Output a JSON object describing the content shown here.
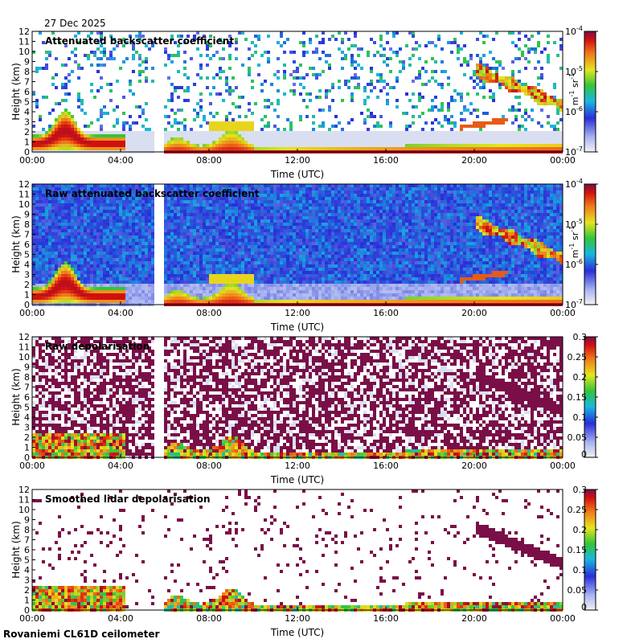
{
  "figure": {
    "date": "27 Dec 2025",
    "footer": "Rovaniemi CL61D ceilometer"
  },
  "chart_data": [
    {
      "type": "heatmap",
      "title": "Attenuated backscatter coefficient",
      "xlabel": "Time (UTC)",
      "ylabel": "Height (km)",
      "x_ticks": [
        "00:00",
        "04:00",
        "08:00",
        "12:00",
        "16:00",
        "20:00",
        "00:00"
      ],
      "y_ticks": [
        "0",
        "1",
        "2",
        "3",
        "4",
        "5",
        "6",
        "7",
        "8",
        "9",
        "10",
        "11",
        "12"
      ],
      "xlim": [
        0,
        24
      ],
      "ylim": [
        0,
        12
      ],
      "colorbar": {
        "scale": "log",
        "range": [
          1e-07,
          0.0001
        ],
        "unit": "m-1 sr-1",
        "tick_labels": [
          {
            "base": "10",
            "exp": "-4"
          },
          {
            "base": "10",
            "exp": "-5"
          },
          {
            "base": "10",
            "exp": "-6"
          },
          {
            "base": "10",
            "exp": "-7"
          }
        ]
      },
      "missing_data_hours": [
        5.5,
        5.9
      ],
      "features": [
        {
          "name": "low cloud layer",
          "t_start": 0,
          "t_end": 4.2,
          "height_km": [
            0.5,
            4.3
          ],
          "level": "high"
        },
        {
          "name": "boundary layer",
          "t_start": 6.0,
          "t_end": 19.5,
          "height_km": [
            0.1,
            3.5
          ],
          "level": "high"
        },
        {
          "name": "descending cloud",
          "t_start": 20.0,
          "t_end": 24,
          "height_km": [
            4.5,
            8.8
          ],
          "level": "high"
        }
      ]
    },
    {
      "type": "heatmap",
      "title": "Raw attenuated backscatter coefficient",
      "xlabel": "Time (UTC)",
      "ylabel": "Height (km)",
      "x_ticks": [
        "00:00",
        "04:00",
        "08:00",
        "12:00",
        "16:00",
        "20:00",
        "00:00"
      ],
      "y_ticks": [
        "0",
        "1",
        "2",
        "3",
        "4",
        "5",
        "6",
        "7",
        "8",
        "9",
        "10",
        "11",
        "12"
      ],
      "xlim": [
        0,
        24
      ],
      "ylim": [
        0,
        12
      ],
      "colorbar": {
        "scale": "log",
        "range": [
          1e-07,
          0.0001
        ],
        "unit": "m-1 sr-1",
        "tick_labels": [
          {
            "base": "10",
            "exp": "-4"
          },
          {
            "base": "10",
            "exp": "-5"
          },
          {
            "base": "10",
            "exp": "-6"
          },
          {
            "base": "10",
            "exp": "-7"
          }
        ]
      },
      "missing_data_hours": [
        5.5,
        5.9
      ]
    },
    {
      "type": "heatmap",
      "title": "Raw depolarisation",
      "xlabel": "Time (UTC)",
      "ylabel": "Height (km)",
      "x_ticks": [
        "00:00",
        "04:00",
        "08:00",
        "12:00",
        "16:00",
        "20:00",
        "00:00"
      ],
      "y_ticks": [
        "0",
        "1",
        "2",
        "3",
        "4",
        "5",
        "6",
        "7",
        "8",
        "9",
        "10",
        "11",
        "12"
      ],
      "xlim": [
        0,
        24
      ],
      "ylim": [
        0,
        12
      ],
      "colorbar": {
        "scale": "linear",
        "range": [
          0,
          0.3
        ],
        "tick_labels": [
          "0.3",
          "0.25",
          "0.2",
          "0.15",
          "0.1",
          "0.05",
          "0"
        ]
      },
      "missing_data_hours": [
        5.5,
        5.9
      ]
    },
    {
      "type": "heatmap",
      "title": "Smoothed lidar depolarisation",
      "xlabel": "Time (UTC)",
      "ylabel": "Height (km)",
      "x_ticks": [
        "00:00",
        "04:00",
        "08:00",
        "12:00",
        "16:00",
        "20:00",
        "00:00"
      ],
      "y_ticks": [
        "0",
        "1",
        "2",
        "3",
        "4",
        "5",
        "6",
        "7",
        "8",
        "9",
        "10",
        "11",
        "12"
      ],
      "xlim": [
        0,
        24
      ],
      "ylim": [
        0,
        12
      ],
      "colorbar": {
        "scale": "linear",
        "range": [
          0,
          0.3
        ],
        "tick_labels": [
          "0.3",
          "0.25",
          "0.2",
          "0.15",
          "0.1",
          "0.05",
          "0"
        ]
      },
      "missing_data_hours": [
        5.5,
        5.9
      ]
    }
  ]
}
